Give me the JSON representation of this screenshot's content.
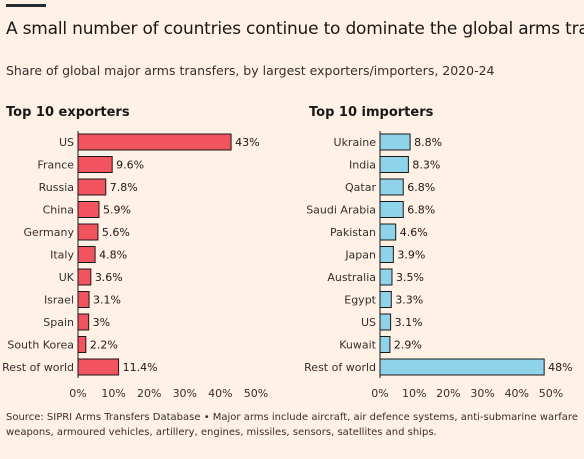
{
  "title": "A small number of countries continue to dominate the global arms trade",
  "subtitle": "Share of global major arms transfers, by largest exporters/importers, 2020-24",
  "source": "Source: SIPRI Arms Transfers Database • Major arms include aircraft, air defence systems, anti-submarine warfare weapons, armoured vehicles, artillery, engines, missiles, sensors, satellites and ships.",
  "colors": {
    "exporters": "#f2545f",
    "importers": "#8fd3ea",
    "background": "#fff1e5",
    "axis": "#33302e"
  },
  "chart_data": [
    {
      "type": "bar",
      "orientation": "horizontal",
      "title": "Top 10 exporters",
      "categories": [
        "US",
        "France",
        "Russia",
        "China",
        "Germany",
        "Italy",
        "UK",
        "Israel",
        "Spain",
        "South Korea",
        "Rest of world"
      ],
      "values": [
        43,
        9.6,
        7.8,
        5.9,
        5.6,
        4.8,
        3.6,
        3.1,
        3,
        2.2,
        11.4
      ],
      "labels": [
        "43%",
        "9.6%",
        "7.8%",
        "5.9%",
        "5.6%",
        "4.8%",
        "3.6%",
        "3.1%",
        "3%",
        "2.2%",
        "11.4%"
      ],
      "xlim": [
        0,
        50
      ],
      "ticks": [
        "0%",
        "10%",
        "20%",
        "30%",
        "40%",
        "50%"
      ]
    },
    {
      "type": "bar",
      "orientation": "horizontal",
      "title": "Top 10 importers",
      "categories": [
        "Ukraine",
        "India",
        "Qatar",
        "Saudi Arabia",
        "Pakistan",
        "Japan",
        "Australia",
        "Egypt",
        "US",
        "Kuwait",
        "Rest of world"
      ],
      "values": [
        8.8,
        8.3,
        6.8,
        6.8,
        4.6,
        3.9,
        3.5,
        3.3,
        3.1,
        2.9,
        48
      ],
      "labels": [
        "8.8%",
        "8.3%",
        "6.8%",
        "6.8%",
        "4.6%",
        "3.9%",
        "3.5%",
        "3.3%",
        "3.1%",
        "2.9%",
        "48%"
      ],
      "xlim": [
        0,
        50
      ],
      "ticks": [
        "0%",
        "10%",
        "20%",
        "30%",
        "40%",
        "50%"
      ]
    }
  ]
}
